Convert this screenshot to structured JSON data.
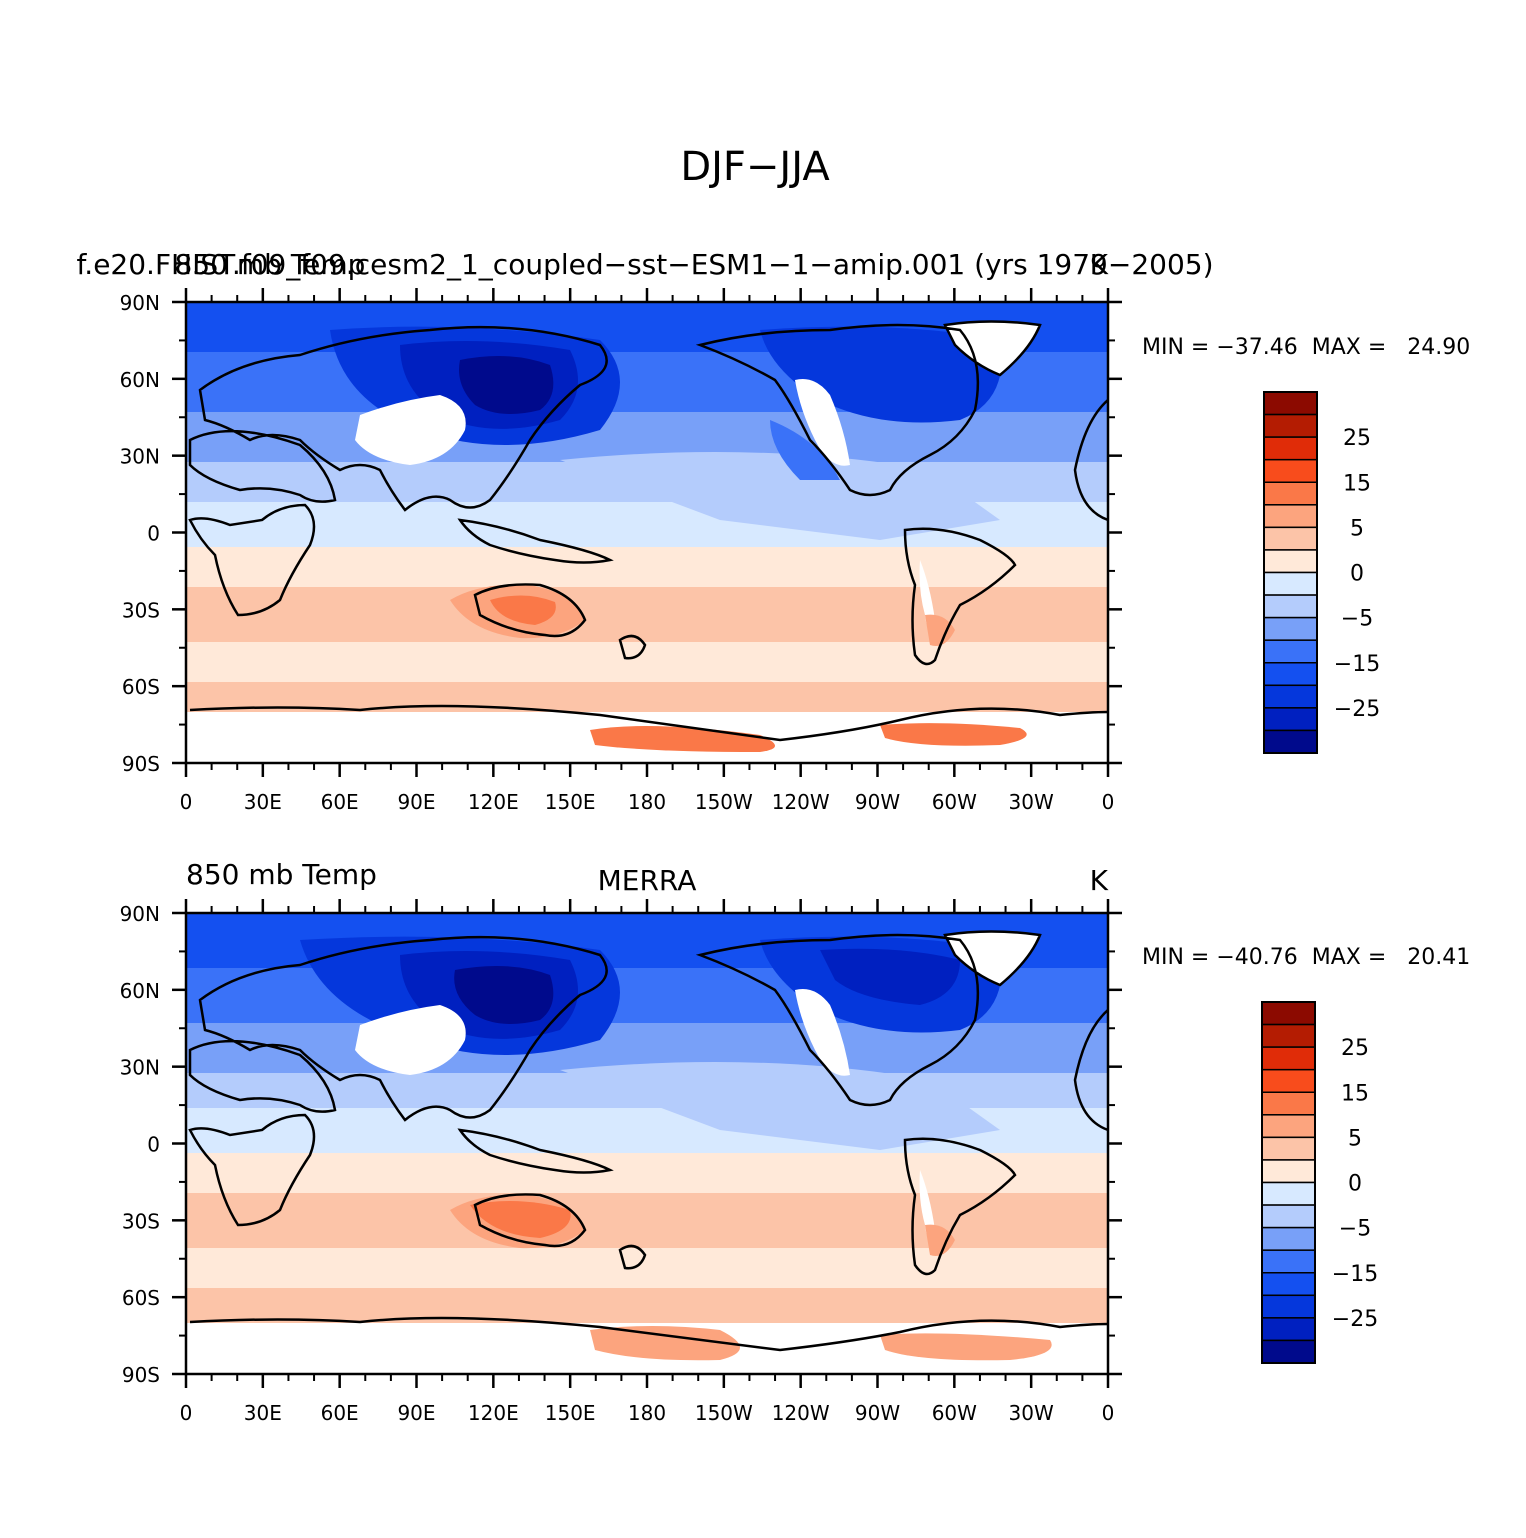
{
  "figure": {
    "title": "DJF−JJA"
  },
  "palette": {
    "levels": [
      -30,
      -25,
      -20,
      -15,
      -10,
      -5,
      0,
      5,
      10,
      15,
      20,
      25,
      30
    ],
    "colors": [
      "#000a8c",
      "#0020c0",
      "#0537dc",
      "#1450f0",
      "#3a72f8",
      "#78a0f8",
      "#b4ccfc",
      "#d7e9ff",
      "#ffe9d9",
      "#fcc4a8",
      "#fca47e",
      "#fa7848",
      "#f84c1c",
      "#e02c08",
      "#b41c02",
      "#8c0a00"
    ],
    "missing": "#ffffff",
    "coast": "#000000"
  },
  "panels": [
    {
      "left_string": "",
      "center_string": "f.e20.FHIST.f09_f09.cesm2_1_coupled−sst−ESM1−1−amip.001 (yrs 1979−2005)",
      "center_overlay": "850 mb Temp",
      "right_string": "K",
      "min_max": "MIN = −37.46  MAX =   24.90",
      "lat_ticks": [
        "90N",
        "60N",
        "30N",
        "0",
        "30S",
        "60S",
        "90S"
      ],
      "lon_ticks": [
        "0",
        "30E",
        "60E",
        "90E",
        "120E",
        "150E",
        "180",
        "150W",
        "120W",
        "90W",
        "60W",
        "30W",
        "0"
      ],
      "colorbar_labels": [
        "25",
        "15",
        "5",
        "0",
        "−5",
        "−15",
        "−25"
      ]
    },
    {
      "left_string": "850 mb Temp",
      "center_string": "MERRA",
      "center_overlay": "",
      "right_string": "K",
      "min_max": "MIN = −40.76  MAX =   20.41",
      "lat_ticks": [
        "90N",
        "60N",
        "30N",
        "0",
        "30S",
        "60S",
        "90S"
      ],
      "lon_ticks": [
        "0",
        "30E",
        "60E",
        "90E",
        "120E",
        "150E",
        "180",
        "150W",
        "120W",
        "90W",
        "60W",
        "30W",
        "0"
      ],
      "colorbar_labels": [
        "25",
        "15",
        "5",
        "0",
        "−5",
        "−15",
        "−25"
      ]
    }
  ]
}
